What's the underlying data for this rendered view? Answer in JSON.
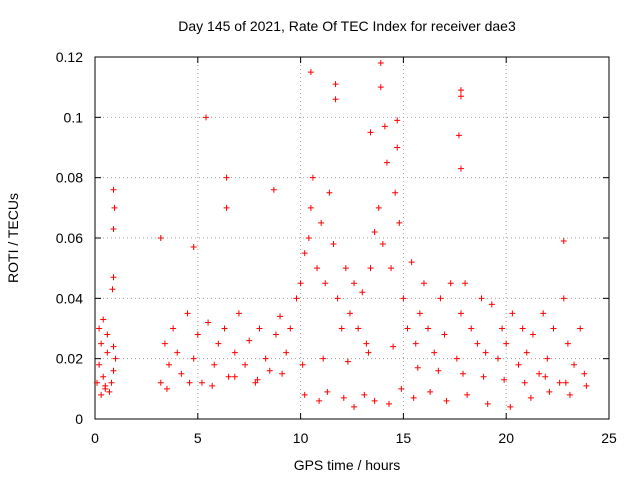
{
  "chart_data": {
    "type": "scatter",
    "title": "Day 145 of 2021, Rate Of TEC Index for receiver dae3",
    "xlabel": "GPS time / hours",
    "ylabel": "ROTI / TECUs",
    "xlim": [
      0,
      25
    ],
    "ylim": [
      0,
      0.12
    ],
    "xticks": [
      0,
      5,
      10,
      15,
      20,
      25
    ],
    "yticks": [
      0,
      0.02,
      0.04,
      0.06,
      0.08,
      0.1,
      0.12
    ],
    "xtick_labels": [
      "0",
      "5",
      "10",
      "15",
      "20",
      "25"
    ],
    "ytick_labels": [
      "0",
      "0.02",
      "0.04",
      "0.06",
      "0.08",
      "0.1",
      "0.12"
    ],
    "grid": true,
    "marker": "+",
    "marker_color": "#ff0000",
    "series": [
      {
        "x": [
          0.1,
          0.2,
          0.3,
          0.4,
          0.5,
          0.6,
          0.8,
          0.9,
          1.0,
          0.2,
          0.4,
          0.6,
          0.9,
          0.3,
          0.5,
          0.7,
          0.85,
          0.9,
          0.9,
          0.95,
          0.9,
          3.2,
          3.4,
          3.6,
          3.8,
          4.0,
          4.2,
          4.5,
          4.8,
          5.0,
          5.2,
          5.5,
          5.8,
          6.0,
          6.3,
          6.5,
          6.8,
          7.0,
          7.3,
          7.5,
          7.8,
          8.0,
          8.3,
          8.5,
          8.8,
          9.0,
          9.3,
          9.5,
          9.8,
          10.0,
          10.2,
          10.4,
          10.5,
          10.6,
          10.8,
          11.0,
          11.2,
          11.4,
          11.6,
          11.8,
          12.0,
          12.2,
          12.4,
          12.6,
          12.8,
          13.0,
          13.2,
          13.4,
          13.6,
          13.8,
          14.0,
          14.2,
          14.4,
          14.6,
          14.8,
          15.0,
          15.2,
          15.4,
          15.6,
          15.8,
          16.0,
          16.2,
          16.5,
          16.8,
          17.0,
          17.3,
          17.6,
          17.8,
          18.0,
          18.3,
          18.6,
          18.8,
          19.0,
          19.3,
          19.6,
          19.8,
          20.0,
          20.3,
          20.6,
          20.8,
          21.0,
          21.3,
          21.6,
          21.8,
          22.0,
          22.3,
          22.6,
          22.8,
          23.0,
          23.3,
          23.6,
          23.8,
          5.4,
          6.4,
          6.4,
          8.7,
          10.5,
          11.7,
          11.7,
          13.4,
          13.9,
          13.9,
          14.1,
          14.7,
          14.7,
          17.8,
          17.8,
          17.7,
          17.8,
          22.8,
          3.2,
          4.8,
          10.2,
          10.9,
          11.3,
          12.1,
          12.6,
          13.1,
          13.6,
          14.3,
          14.9,
          15.5,
          16.3,
          17.1,
          18.1,
          19.1,
          20.2,
          21.2,
          22.1,
          23.1,
          3.5,
          4.6,
          5.7,
          6.8,
          7.9,
          9.1,
          10.1,
          11.1,
          12.3,
          13.3,
          14.5,
          15.7,
          16.7,
          17.9,
          18.9,
          19.9,
          20.9,
          21.9,
          22.9,
          23.9
        ],
        "y": [
          0.012,
          0.018,
          0.025,
          0.014,
          0.01,
          0.022,
          0.012,
          0.016,
          0.02,
          0.03,
          0.033,
          0.028,
          0.024,
          0.008,
          0.011,
          0.009,
          0.043,
          0.047,
          0.063,
          0.07,
          0.076,
          0.012,
          0.025,
          0.018,
          0.03,
          0.022,
          0.015,
          0.035,
          0.02,
          0.028,
          0.012,
          0.032,
          0.018,
          0.025,
          0.03,
          0.014,
          0.022,
          0.035,
          0.018,
          0.026,
          0.012,
          0.03,
          0.02,
          0.016,
          0.028,
          0.034,
          0.022,
          0.03,
          0.04,
          0.045,
          0.055,
          0.06,
          0.07,
          0.08,
          0.05,
          0.065,
          0.045,
          0.075,
          0.058,
          0.04,
          0.03,
          0.05,
          0.035,
          0.045,
          0.03,
          0.042,
          0.025,
          0.05,
          0.062,
          0.07,
          0.058,
          0.085,
          0.05,
          0.075,
          0.065,
          0.04,
          0.03,
          0.052,
          0.025,
          0.035,
          0.045,
          0.03,
          0.022,
          0.04,
          0.028,
          0.045,
          0.02,
          0.035,
          0.045,
          0.03,
          0.025,
          0.04,
          0.022,
          0.038,
          0.02,
          0.03,
          0.025,
          0.035,
          0.018,
          0.03,
          0.022,
          0.028,
          0.015,
          0.035,
          0.02,
          0.03,
          0.012,
          0.04,
          0.025,
          0.018,
          0.03,
          0.015,
          0.1,
          0.08,
          0.07,
          0.076,
          0.115,
          0.111,
          0.106,
          0.095,
          0.118,
          0.11,
          0.097,
          0.09,
          0.099,
          0.109,
          0.107,
          0.094,
          0.083,
          0.059,
          0.06,
          0.057,
          0.008,
          0.006,
          0.009,
          0.007,
          0.004,
          0.008,
          0.006,
          0.005,
          0.01,
          0.007,
          0.009,
          0.006,
          0.008,
          0.005,
          0.004,
          0.007,
          0.009,
          0.008,
          0.01,
          0.012,
          0.011,
          0.014,
          0.013,
          0.015,
          0.018,
          0.02,
          0.019,
          0.022,
          0.024,
          0.017,
          0.016,
          0.015,
          0.014,
          0.013,
          0.012,
          0.014,
          0.012,
          0.011
        ]
      }
    ]
  }
}
